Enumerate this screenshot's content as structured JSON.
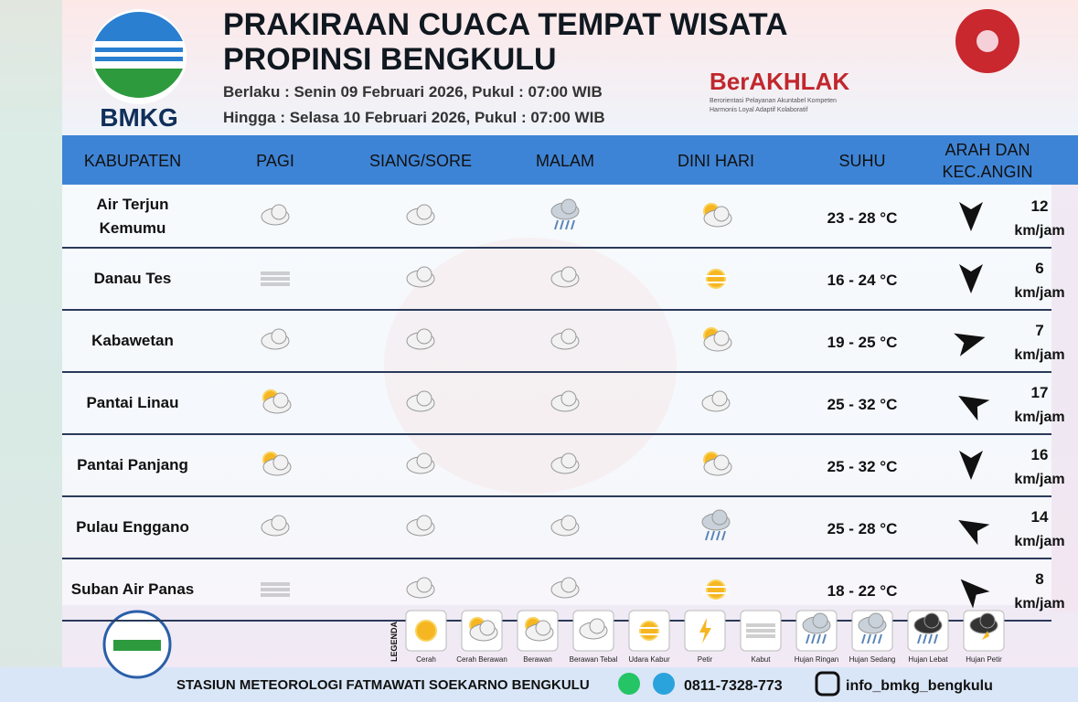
{
  "header": {
    "title_line1": "PRAKIRAAN CUACA TEMPAT WISATA",
    "title_line2": "PROPINSI BENGKULU",
    "valid_from": "Berlaku : Senin 09 Februari 2026, Pukul : 07:00 WIB",
    "valid_to": "Hingga : Selasa 10 Februari 2026, Pukul : 07:00 WIB",
    "logo_text": "BMKG",
    "brand": "BerAKHLAK",
    "brand_line1": "Berorientasi Pelayanan Akuntabel Kompeten",
    "brand_line2": "Harmonis Loyal Adaptif Kolaboratif"
  },
  "table": {
    "columns": [
      "KABUPATEN",
      "PAGI",
      "SIANG/SORE",
      "MALAM",
      "DINI HARI",
      "SUHU",
      "ARAH DAN KEC.ANGIN"
    ],
    "rows": [
      {
        "name": "Air Terjun Kemumu",
        "temp": "23 - 28 °C",
        "wind_speed": 12,
        "wind_unit": "km/jam"
      },
      {
        "name": "Danau Tes",
        "temp": "16 - 24 °C",
        "wind_speed": 6,
        "wind_unit": "km/jam"
      },
      {
        "name": "Kabawetan",
        "temp": "19 - 25 °C",
        "wind_speed": 7,
        "wind_unit": "km/jam"
      },
      {
        "name": "Pantai Linau",
        "temp": "25 - 32 °C",
        "wind_speed": 17,
        "wind_unit": "km/jam"
      },
      {
        "name": "Pantai Panjang",
        "temp": "25 - 32 °C",
        "wind_speed": 16,
        "wind_unit": "km/jam"
      },
      {
        "name": "Pulau Enggano",
        "temp": "25 - 28 °C",
        "wind_speed": 14,
        "wind_unit": "km/jam"
      },
      {
        "name": "Suban Air Panas",
        "temp": "18 - 22 °C",
        "wind_speed": 8,
        "wind_unit": "km/jam"
      }
    ]
  },
  "legend": {
    "title": "LEGENDA",
    "items": [
      "Cerah",
      "Cerah Berawan",
      "Berawan",
      "Berawan Tebal",
      "Udara Kabur",
      "Petir",
      "Kabut",
      "Hujan Ringan",
      "Hujan Sedang",
      "Hujan Lebat",
      "Hujan Petir"
    ]
  },
  "footer": {
    "station": "STASIUN METEOROLOGI FATMAWATI SOEKARNO BENGKULU",
    "phone": "0811-7328-773",
    "instagram": "info_bmkg_bengkulu"
  }
}
